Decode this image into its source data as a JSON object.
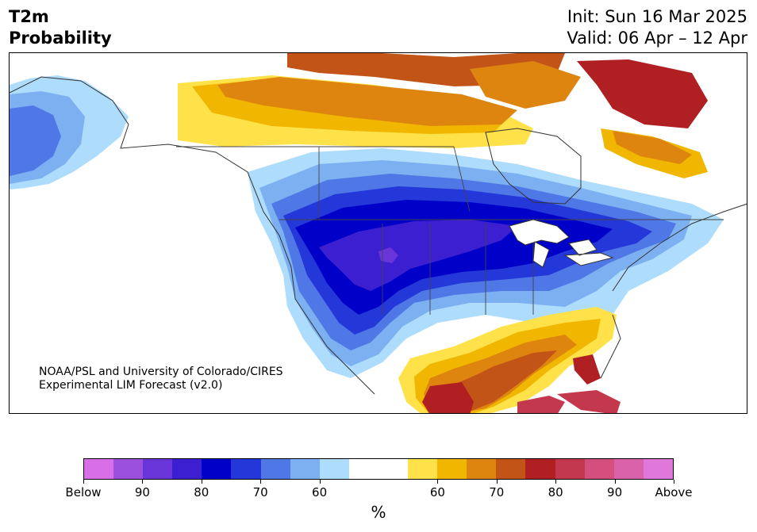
{
  "title": {
    "line1": "T2m",
    "line2": "Probability"
  },
  "header": {
    "init": "Init: Sun 16 Mar 2025",
    "valid": "Valid: 06 Apr – 12 Apr"
  },
  "credit": {
    "line1": "NOAA/PSL and University of Colorado/CIRES",
    "line2": "Experimental LIM Forecast (v2.0)"
  },
  "colorbar": {
    "unit": "%",
    "ticks": [
      "Below",
      "90",
      "80",
      "70",
      "60",
      "60",
      "70",
      "80",
      "90",
      "Above"
    ],
    "colors": [
      "#d86fe6",
      "#9c50de",
      "#6a35d8",
      "#3b1fd0",
      "#0000c8",
      "#2438da",
      "#4f78e6",
      "#7cb0f0",
      "#aedcfc",
      "#ffffff",
      "#ffffff",
      "#ffe24a",
      "#f1b700",
      "#de8510",
      "#c35418",
      "#b01f22",
      "#c4384d",
      "#d44f7e",
      "#da62ab",
      "#e078dc"
    ]
  }
}
